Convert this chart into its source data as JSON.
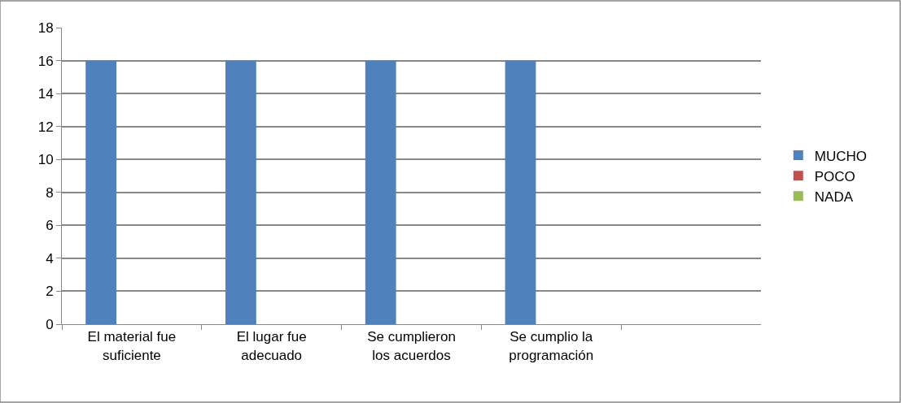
{
  "chart_data": {
    "type": "bar",
    "categories": [
      "El material fue\nsuficiente",
      "El lugar fue\nadecuado",
      "Se cumplieron\nlos acuerdos",
      "Se cumplio la\nprogramación",
      null
    ],
    "series": [
      {
        "name": "MUCHO",
        "color": "#4f81bd",
        "values": [
          16,
          16,
          16,
          16,
          null
        ]
      },
      {
        "name": "POCO",
        "color": "#c0504d",
        "values": [
          0,
          0,
          0,
          0,
          null
        ]
      },
      {
        "name": "NADA",
        "color": "#9bbb59",
        "values": [
          0,
          0,
          0,
          0,
          null
        ]
      }
    ],
    "ylim": [
      0,
      18
    ],
    "yticks": [
      0,
      2,
      4,
      6,
      8,
      10,
      12,
      14,
      16,
      18
    ],
    "grid": "y",
    "legend": "right"
  }
}
